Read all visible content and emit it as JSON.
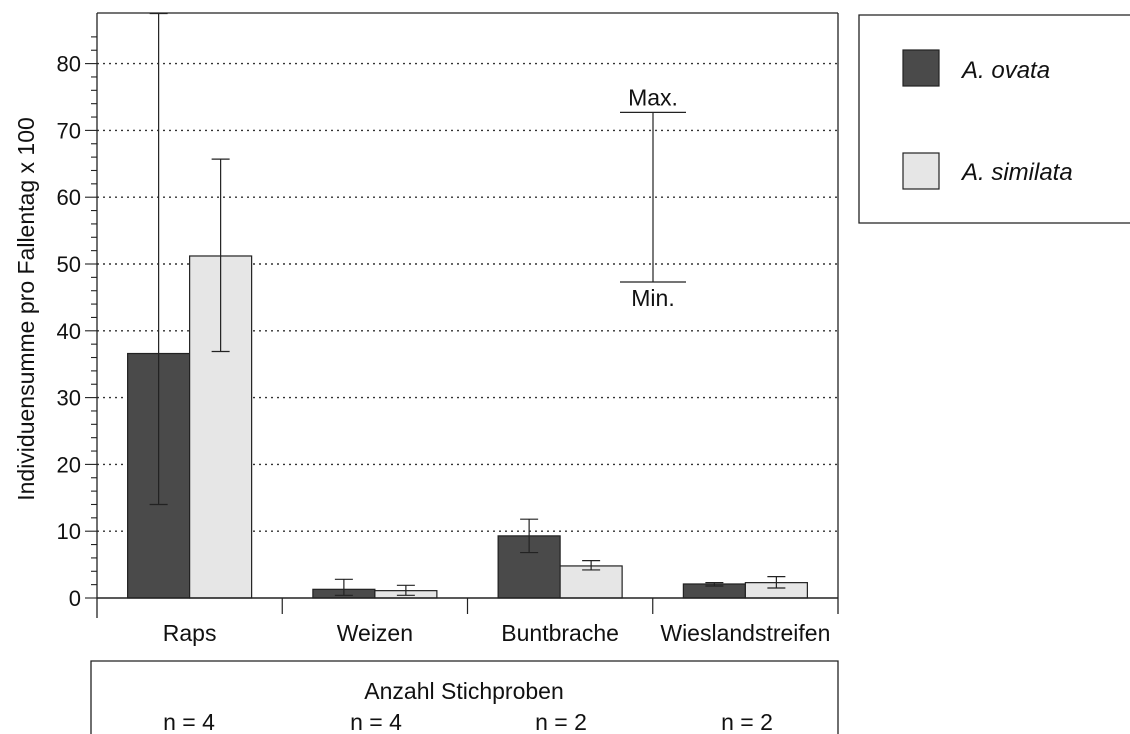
{
  "chart_data": {
    "type": "bar",
    "categories": [
      "Raps",
      "Weizen",
      "Buntbrache",
      "Wieslandstreifen"
    ],
    "series": [
      {
        "name": "A. ovata",
        "color": "#4a4a4a",
        "values": [
          36.6,
          1.3,
          9.3,
          2.1
        ],
        "err_min": [
          14.0,
          0.4,
          6.8,
          1.8
        ],
        "err_max": [
          87.5,
          2.8,
          11.8,
          2.3
        ]
      },
      {
        "name": "A. similata",
        "color": "#e6e6e6",
        "values": [
          51.2,
          1.1,
          4.8,
          2.3
        ],
        "err_min": [
          36.9,
          0.4,
          4.2,
          1.5
        ],
        "err_max": [
          65.7,
          1.9,
          5.6,
          3.2
        ]
      }
    ],
    "ylabel": "Individuensumme pro Fallentag x 100",
    "xlabel": "",
    "ylim": [
      0,
      88
    ],
    "yticks": [
      0,
      10,
      20,
      30,
      40,
      50,
      60,
      70,
      80
    ],
    "grid": "horizontal dotted",
    "legend_position": "right",
    "error_key": {
      "max_label": "Max.",
      "min_label": "Min.",
      "max_value": 72.7,
      "min_value": 47.3
    },
    "sample_sizes": {
      "title": "Anzahl Stichproben",
      "labels": [
        "n = 4",
        "n = 4",
        "n = 2",
        "n = 2"
      ]
    }
  }
}
